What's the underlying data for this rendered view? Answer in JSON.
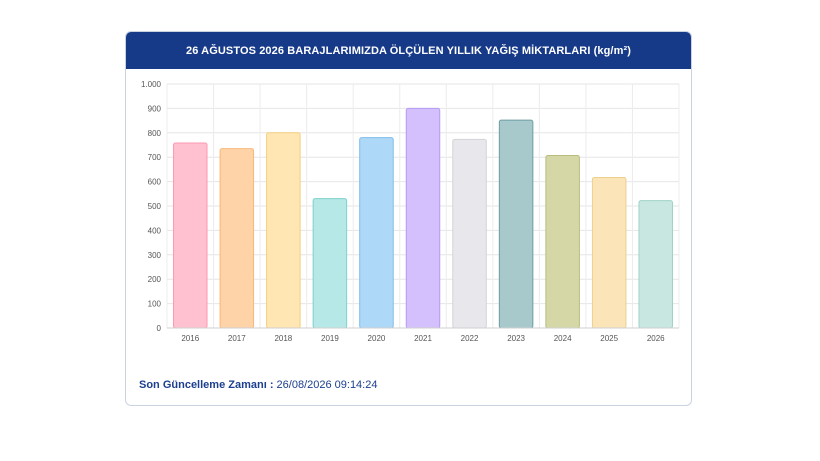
{
  "title": "26 AĞUSTOS 2026 BARAJLARIMIZDA ÖLÇÜLEN YILLIK YAĞIŞ MİKTARLARI (kg/m²)",
  "footer": {
    "label": "Son Güncelleme Zamanı :",
    "value": " 26/08/2026 09:14:24"
  },
  "chart_data": {
    "type": "bar",
    "title": "26 AĞUSTOS 2026 BARAJLARIMIZDA ÖLÇÜLEN YILLIK YAĞIŞ MİKTARLARI (kg/m²)",
    "categories": [
      "2016",
      "2017",
      "2018",
      "2019",
      "2020",
      "2021",
      "2022",
      "2023",
      "2024",
      "2025",
      "2026"
    ],
    "values": [
      758,
      735,
      800,
      530,
      780,
      900,
      773,
      852,
      707,
      617,
      522
    ],
    "ylim": [
      0,
      1000
    ],
    "yticks": [
      0,
      100,
      200,
      300,
      400,
      500,
      600,
      700,
      800,
      900,
      1000
    ],
    "ytick_labels": [
      "0",
      "100",
      "200",
      "300",
      "400",
      "500",
      "600",
      "700",
      "800",
      "900",
      "1.000"
    ],
    "grid": true,
    "legend": "none",
    "colors": [
      "#ffc0cf",
      "#ffd3a8",
      "#ffe6b3",
      "#b5e8e6",
      "#aed8f8",
      "#d3c0fc",
      "#e8e8ec",
      "#a7c9cc",
      "#d5d8a6",
      "#fbe4b8",
      "#c7e7e0"
    ],
    "edge_colors": [
      "#ff99b3",
      "#f9b77a",
      "#f2cf7c",
      "#7fd0cb",
      "#7ebcea",
      "#b59bf0",
      "#d3d3d8",
      "#6d9da3",
      "#b7bc7c",
      "#ecd08f",
      "#9fd2c5"
    ]
  }
}
